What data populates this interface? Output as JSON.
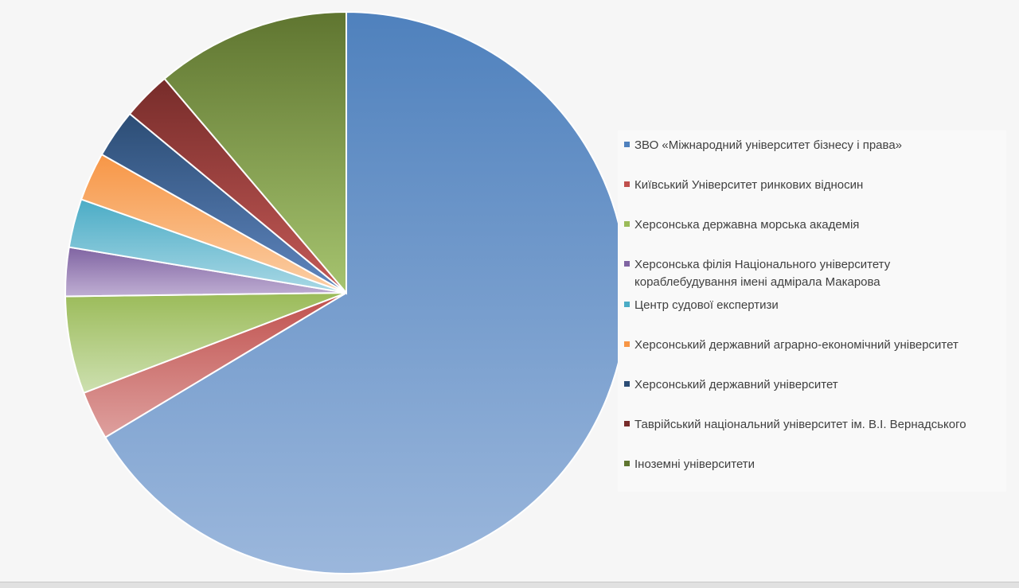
{
  "chart_data": {
    "type": "pie",
    "title": "",
    "start_angle_deg": 0,
    "direction": "clockwise",
    "legend_position": "right",
    "categories": [
      "ЗВО «Міжнародний університет бізнесу і права»",
      "Київський Університет ринкових відносин",
      "Херсонська державна морська академія",
      "Херсонська філія Національного університету кораблебудування імені адмірала Макарова",
      "Центр судової експертизи",
      "Херсонський державний аграрно-економічний університет",
      "Херсонський державний університет",
      "Таврійський національний університет ім. В.І. Вернадського",
      "Іноземні університети"
    ],
    "values": [
      66.4,
      2.8,
      5.6,
      2.8,
      2.8,
      2.8,
      2.8,
      2.8,
      11.2
    ],
    "colors": [
      "#4f81bd",
      "#c0504d",
      "#9bbb59",
      "#8064a2",
      "#4bacc6",
      "#f79646",
      "#2c4d75",
      "#772c2a",
      "#5f7530"
    ],
    "colors_light": [
      "#9bb7dc",
      "#dea09e",
      "#cde0b0",
      "#bfaed3",
      "#a9d8e5",
      "#fbcfa6",
      "#5f86bf",
      "#c45a57",
      "#a6c46f"
    ]
  }
}
